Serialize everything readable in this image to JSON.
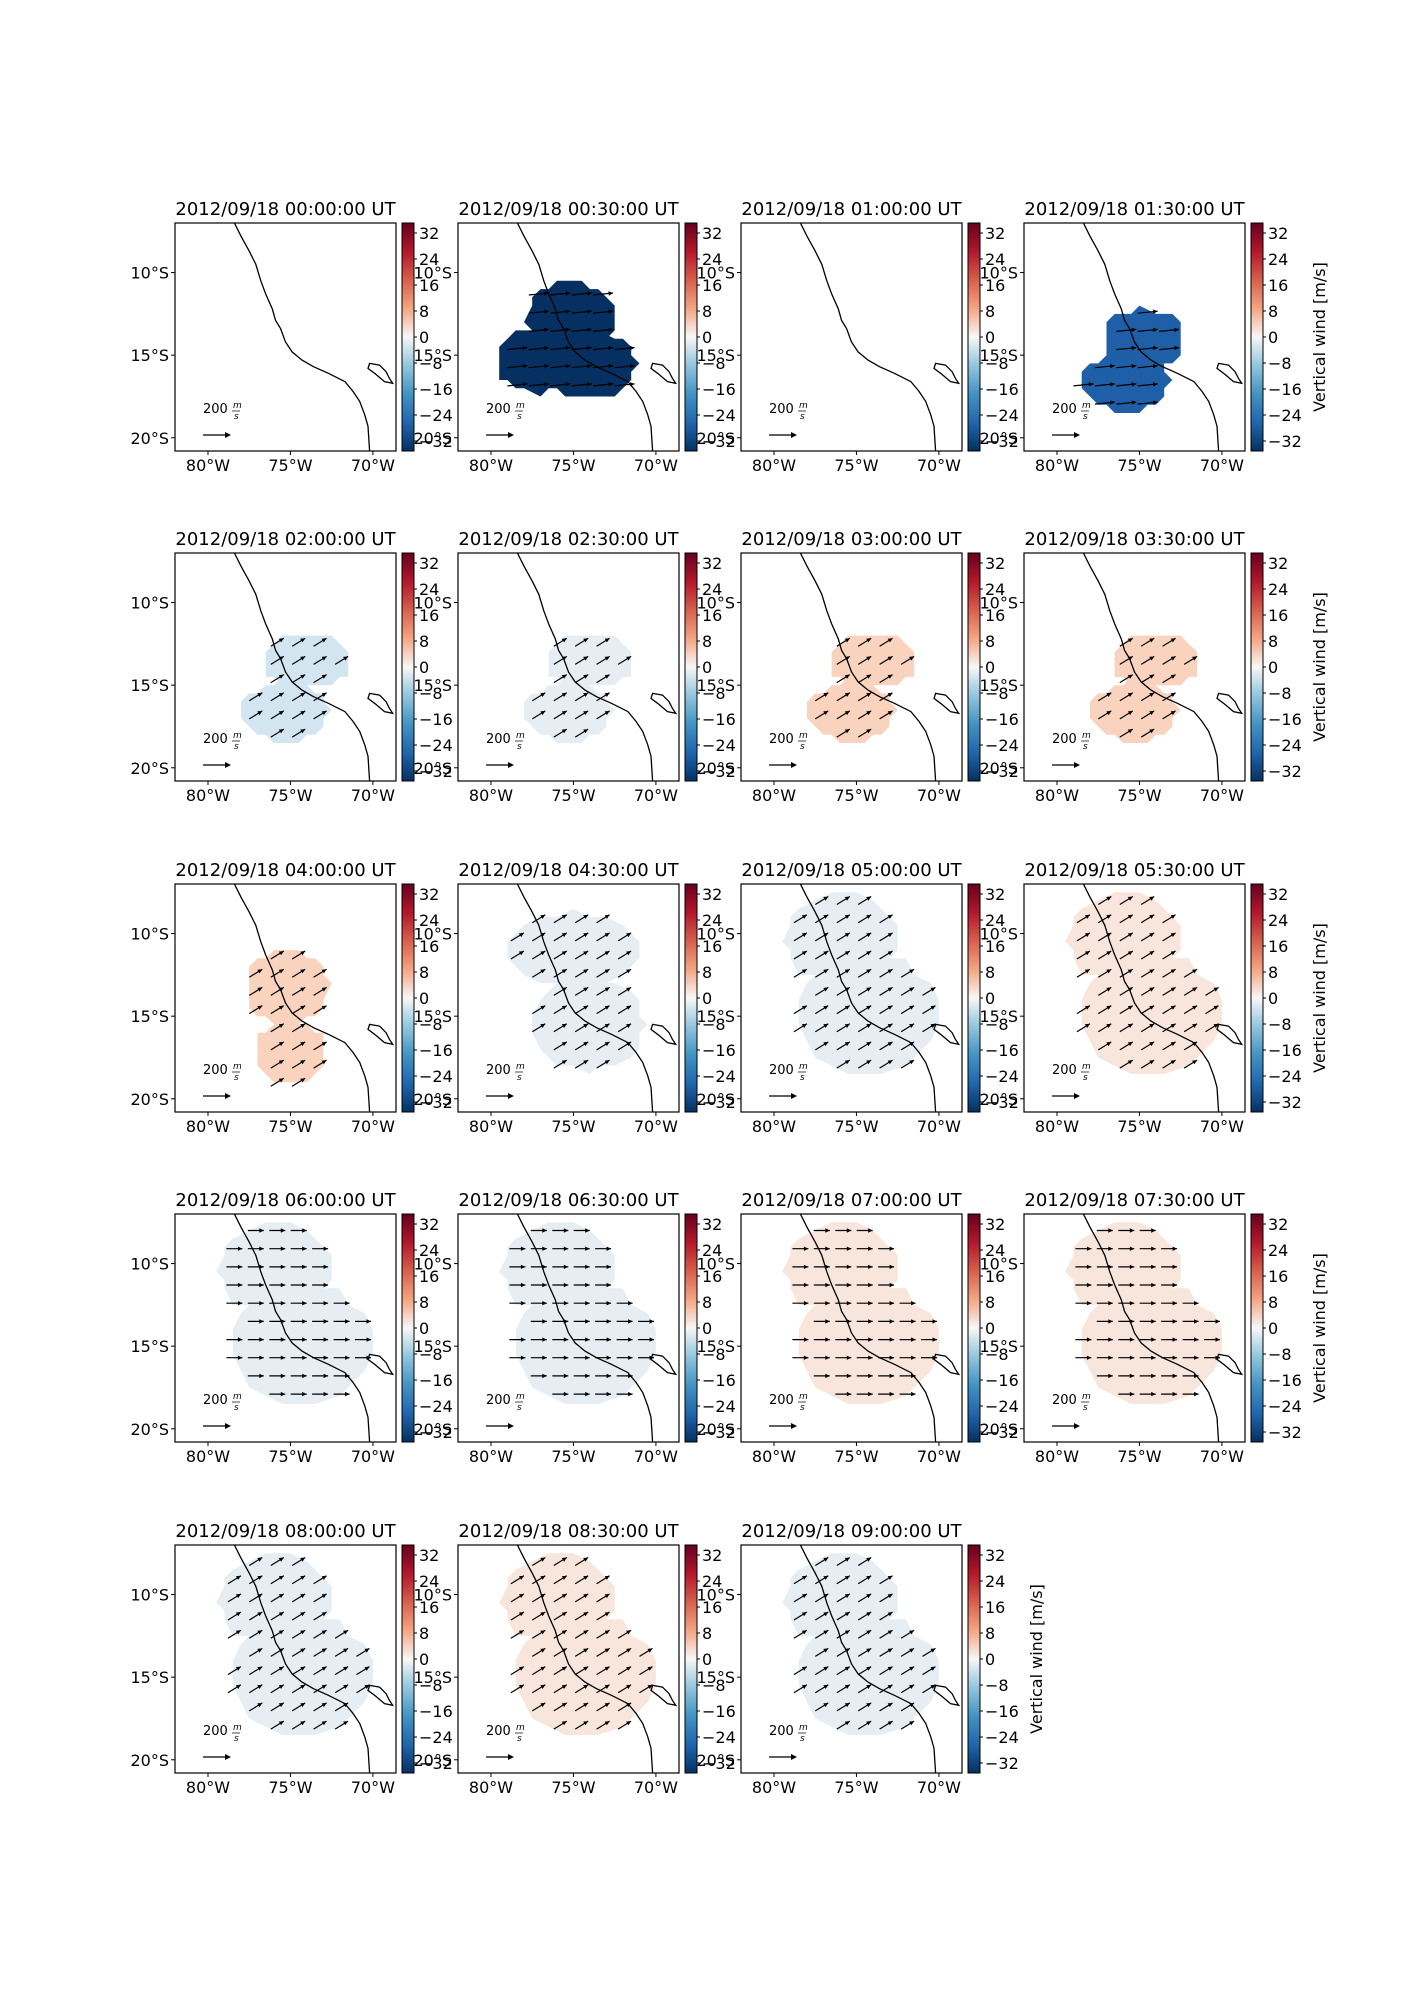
{
  "figure": {
    "colorbar_ticks": [
      "32",
      "24",
      "16",
      "8",
      "0",
      "−8",
      "−16",
      "−24",
      "−32"
    ],
    "colorbar_label": "Vertical wind [m/s]",
    "lon_ticks": [
      "80°W",
      "75°W",
      "70°W"
    ],
    "lat_ticks": [
      "10°S",
      "15°S",
      "20°S"
    ],
    "scale_label": "200",
    "scale_unit_top": "m",
    "scale_unit_bottom": "s",
    "colors": {
      "strong_negative": "#053061",
      "negative": "#1f5fa7",
      "weak_negative": "#d2e5f0",
      "faint_negative": "#e6eef4",
      "faint_positive": "#f8e6dc",
      "weak_positive": "#f9d3bd",
      "background": "#ffffff",
      "coast": "#000000"
    }
  },
  "panels": [
    {
      "title": "2012/09/18 00:00:00 UT",
      "fill": null,
      "arrows": "none"
    },
    {
      "title": "2012/09/18 00:30:00 UT",
      "fill": "strong_negative",
      "arrows": "east"
    },
    {
      "title": "2012/09/18 01:00:00 UT",
      "fill": null,
      "arrows": "none"
    },
    {
      "title": "2012/09/18 01:30:00 UT",
      "fill": "negative",
      "arrows": "east"
    },
    {
      "title": "2012/09/18 02:00:00 UT",
      "fill": "weak_negative",
      "arrows": "northeast"
    },
    {
      "title": "2012/09/18 02:30:00 UT",
      "fill": "faint_negative",
      "arrows": "northeast"
    },
    {
      "title": "2012/09/18 03:00:00 UT",
      "fill": "weak_positive",
      "arrows": "northeast"
    },
    {
      "title": "2012/09/18 03:30:00 UT",
      "fill": "weak_positive",
      "arrows": "northeast"
    },
    {
      "title": "2012/09/18 04:00:00 UT",
      "fill": "weak_positive",
      "arrows": "northeast"
    },
    {
      "title": "2012/09/18 04:30:00 UT",
      "fill": "faint_negative",
      "arrows": "northeast"
    },
    {
      "title": "2012/09/18 05:00:00 UT",
      "fill": "faint_negative",
      "arrows": "northeast"
    },
    {
      "title": "2012/09/18 05:30:00 UT",
      "fill": "faint_positive",
      "arrows": "northeast"
    },
    {
      "title": "2012/09/18 06:00:00 UT",
      "fill": "faint_negative",
      "arrows": "east"
    },
    {
      "title": "2012/09/18 06:30:00 UT",
      "fill": "faint_negative",
      "arrows": "east"
    },
    {
      "title": "2012/09/18 07:00:00 UT",
      "fill": "faint_positive",
      "arrows": "east"
    },
    {
      "title": "2012/09/18 07:30:00 UT",
      "fill": "faint_positive",
      "arrows": "east"
    },
    {
      "title": "2012/09/18 08:00:00 UT",
      "fill": "faint_negative",
      "arrows": "northeast"
    },
    {
      "title": "2012/09/18 08:30:00 UT",
      "fill": "faint_positive",
      "arrows": "northeast"
    },
    {
      "title": "2012/09/18 09:00:00 UT",
      "fill": "faint_negative",
      "arrows": "northeast"
    }
  ]
}
